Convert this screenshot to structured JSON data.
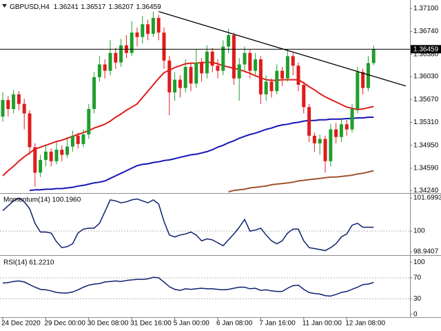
{
  "chart_data": [
    {
      "type": "candlestick",
      "title": "GBPUSD,H4",
      "ohlc": [
        "1.36241",
        "1.36517",
        "1.36207",
        "1.36459"
      ],
      "categories": [
        "24 Dec 2020",
        null,
        null,
        null,
        null,
        null,
        null,
        null,
        "29 Dec 00:00",
        null,
        null,
        null,
        null,
        null,
        null,
        null,
        "30 Dec 08:00",
        null,
        null,
        null,
        null,
        null,
        null,
        null,
        "31 Dec 16:00",
        null,
        null,
        null,
        null,
        null,
        null,
        null,
        "5 Jan 00:00",
        null,
        null,
        null,
        null,
        null,
        null,
        null,
        "6 Jan 08:00",
        null,
        null,
        null,
        null,
        null,
        null,
        null,
        "7 Jan 16:00",
        null,
        null,
        null,
        null,
        null,
        null,
        null,
        "11 Jan 00:00",
        null,
        null,
        null,
        null,
        null,
        null,
        null,
        "12 Jan 08:00",
        null,
        null,
        null,
        null,
        null
      ],
      "open": [
        1.354,
        1.3566,
        1.3552,
        1.3575,
        1.356,
        1.3545,
        1.3492,
        1.3452,
        1.3472,
        1.3485,
        1.347,
        1.3488,
        1.348,
        1.3493,
        1.351,
        1.3497,
        1.3512,
        1.3552,
        1.3602,
        1.3622,
        1.3612,
        1.364,
        1.3625,
        1.3652,
        1.364,
        1.3672,
        1.3665,
        1.3685,
        1.367,
        1.3695,
        1.3672,
        1.3628,
        1.3578,
        1.3598,
        1.3585,
        1.3618,
        1.3592,
        1.3625,
        1.3608,
        1.3642,
        1.362,
        1.3612,
        1.365,
        1.3668,
        1.36,
        1.3622,
        1.364,
        1.3612,
        1.363,
        1.3575,
        1.3595,
        1.358,
        1.3612,
        1.36,
        1.3635,
        1.362,
        1.359,
        1.3555,
        1.351,
        1.3498,
        1.3505,
        1.347,
        1.352,
        1.3508,
        1.3528,
        1.352,
        1.3552,
        1.361,
        1.3585,
        1.36241
      ],
      "high": [
        1.3578,
        1.3572,
        1.3582,
        1.358,
        1.3568,
        1.355,
        1.3498,
        1.348,
        1.3495,
        1.349,
        1.35,
        1.3495,
        1.3505,
        1.3518,
        1.3515,
        1.352,
        1.356,
        1.361,
        1.3635,
        1.363,
        1.366,
        1.3648,
        1.3662,
        1.3668,
        1.369,
        1.368,
        1.3698,
        1.3692,
        1.3705,
        1.37,
        1.368,
        1.3635,
        1.361,
        1.3605,
        1.363,
        1.3625,
        1.3645,
        1.3632,
        1.3652,
        1.3648,
        1.363,
        1.366,
        1.3678,
        1.3672,
        1.3632,
        1.365,
        1.3645,
        1.364,
        1.3635,
        1.3605,
        1.36,
        1.3622,
        1.3618,
        1.3645,
        1.364,
        1.3625,
        1.3595,
        1.356,
        1.3515,
        1.3512,
        1.351,
        1.3528,
        1.353,
        1.3538,
        1.3535,
        1.356,
        1.3618,
        1.3615,
        1.3635,
        1.36517
      ],
      "low": [
        1.3532,
        1.354,
        1.3545,
        1.355,
        1.352,
        1.348,
        1.343,
        1.3445,
        1.3462,
        1.3462,
        1.3465,
        1.347,
        1.3475,
        1.3485,
        1.349,
        1.3492,
        1.3505,
        1.3545,
        1.3595,
        1.36,
        1.3605,
        1.3615,
        1.3618,
        1.3632,
        1.3635,
        1.365,
        1.3655,
        1.366,
        1.3665,
        1.366,
        1.3615,
        1.3542,
        1.3565,
        1.357,
        1.3578,
        1.358,
        1.3585,
        1.3595,
        1.36,
        1.361,
        1.36,
        1.3605,
        1.364,
        1.359,
        1.3565,
        1.3612,
        1.36,
        1.3605,
        1.356,
        1.3565,
        1.357,
        1.3575,
        1.3588,
        1.3595,
        1.3605,
        1.358,
        1.3545,
        1.35,
        1.3485,
        1.348,
        1.3452,
        1.3462,
        1.3498,
        1.35,
        1.351,
        1.3515,
        1.3545,
        1.3575,
        1.358,
        1.36207
      ],
      "close": [
        1.3566,
        1.3552,
        1.3575,
        1.356,
        1.3545,
        1.3492,
        1.3452,
        1.3472,
        1.3485,
        1.347,
        1.3488,
        1.348,
        1.3493,
        1.351,
        1.3497,
        1.3512,
        1.3552,
        1.3602,
        1.3622,
        1.3612,
        1.364,
        1.3625,
        1.3652,
        1.364,
        1.3672,
        1.3665,
        1.3685,
        1.367,
        1.3695,
        1.3672,
        1.3628,
        1.3578,
        1.3598,
        1.3585,
        1.3618,
        1.3592,
        1.3625,
        1.3608,
        1.3642,
        1.362,
        1.3612,
        1.365,
        1.3668,
        1.36,
        1.3622,
        1.364,
        1.3612,
        1.363,
        1.3575,
        1.3595,
        1.358,
        1.3612,
        1.36,
        1.3635,
        1.362,
        1.359,
        1.3555,
        1.351,
        1.3498,
        1.3505,
        1.347,
        1.352,
        1.3508,
        1.3528,
        1.352,
        1.3552,
        1.361,
        1.3585,
        1.36241,
        1.36459
      ],
      "up_color": "#1f9e2c",
      "down_color": "#e01b1b",
      "series": [
        {
          "color": "#e31a1a",
          "values": [
            1.3447,
            1.3455,
            1.3462,
            1.347,
            1.3477,
            1.3483,
            1.3489,
            1.3492,
            1.3495,
            1.3498,
            1.3501,
            1.3503,
            1.3506,
            1.3509,
            1.3512,
            1.3515,
            1.3518,
            1.3522,
            1.3525,
            1.3528,
            1.3533,
            1.3539,
            1.3544,
            1.355,
            1.3555,
            1.356,
            1.357,
            1.358,
            1.359,
            1.36,
            1.3609,
            1.3613,
            1.3617,
            1.362,
            1.3623,
            1.3624,
            1.3624,
            1.3625,
            1.3625,
            1.3625,
            1.3623,
            1.362,
            1.3618,
            1.3616,
            1.3614,
            1.3611,
            1.3608,
            1.3604,
            1.3601,
            1.3598,
            1.3597,
            1.3597,
            1.3598,
            1.3598,
            1.3598,
            1.3598,
            1.3593,
            1.3587,
            1.3582,
            1.3576,
            1.3571,
            1.3567,
            1.3563,
            1.3559,
            1.3555,
            1.3553,
            1.3551,
            1.3552,
            1.3554,
            1.3556
          ]
        },
        {
          "color": "#1414b8",
          "values": [
            null,
            null,
            null,
            null,
            null,
            1.3424,
            1.3425,
            1.3425,
            1.3426,
            1.3426,
            1.3427,
            1.3427,
            1.3428,
            1.3429,
            1.3431,
            1.3432,
            1.3434,
            1.3436,
            1.3437,
            1.3439,
            1.3443,
            1.3447,
            1.3451,
            1.3455,
            1.3459,
            1.3463,
            1.3465,
            1.3466,
            1.3468,
            1.3469,
            1.3471,
            1.3472,
            1.3474,
            1.3476,
            1.3478,
            1.348,
            1.3481,
            1.3483,
            1.3485,
            1.3488,
            1.3492,
            1.3495,
            1.3499,
            1.3502,
            1.3506,
            1.3509,
            1.3512,
            1.3514,
            1.3517,
            1.352,
            1.3522,
            1.3525,
            1.3527,
            1.3528,
            1.353,
            1.3531,
            1.3533,
            1.3534,
            1.3534,
            1.3535,
            1.3535,
            1.3536,
            1.3536,
            1.3536,
            1.3537,
            1.3537,
            1.3538,
            1.3538,
            1.3539,
            1.3539
          ]
        },
        {
          "color": "#a0522d",
          "values": [
            null,
            null,
            null,
            null,
            null,
            null,
            null,
            null,
            null,
            null,
            null,
            null,
            null,
            null,
            null,
            null,
            null,
            null,
            null,
            null,
            null,
            null,
            null,
            null,
            null,
            null,
            null,
            null,
            null,
            null,
            null,
            null,
            null,
            null,
            null,
            null,
            null,
            null,
            null,
            null,
            null,
            null,
            1.3422,
            1.3424,
            1.3425,
            1.3426,
            1.3428,
            1.3429,
            1.343,
            1.3431,
            1.3433,
            1.3434,
            1.3435,
            1.3436,
            1.3437,
            1.3439,
            1.344,
            1.3441,
            1.3442,
            1.3443,
            1.3444,
            1.3445,
            1.3445,
            1.3446,
            1.3447,
            1.3448,
            1.345,
            1.3451,
            1.3453,
            1.3455
          ]
        }
      ],
      "trendline": {
        "x": [
          29,
          75
        ],
        "y": [
          1.3705,
          1.3588
        ],
        "color": "#000000"
      },
      "price_line": {
        "value": 1.36459,
        "label": "1.36459"
      },
      "ylim": [
        1.3421,
        1.3721
      ],
      "yticks": [
        {
          "value": 1.371,
          "label": "1.37100"
        },
        {
          "value": 1.3674,
          "label": "1.36740"
        },
        {
          "value": 1.3638,
          "label": "1.36380"
        },
        {
          "value": 1.3603,
          "label": "1.36030"
        },
        {
          "value": 1.3567,
          "label": "1.35670"
        },
        {
          "value": 1.3531,
          "label": "1.35310"
        },
        {
          "value": 1.3495,
          "label": "1.34950"
        },
        {
          "value": 1.3459,
          "label": "1.34590"
        },
        {
          "value": 1.3424,
          "label": "1.34240"
        }
      ]
    },
    {
      "type": "line",
      "title": "Momentum(14) 100.1960",
      "series": [
        {
          "color": "#0a1f6e",
          "values": [
            101.05,
            101.3,
            101.55,
            101.7,
            101.5,
            101.15,
            100.4,
            99.95,
            99.95,
            99.9,
            99.45,
            99.15,
            99.2,
            99.35,
            99.9,
            100.1,
            100.15,
            100.15,
            100.4,
            101.0,
            101.6,
            101.55,
            101.45,
            101.5,
            101.6,
            101.65,
            101.55,
            101.45,
            101.6,
            101.4,
            100.5,
            99.8,
            99.7,
            99.8,
            99.85,
            99.95,
            99.8,
            99.5,
            99.6,
            99.55,
            99.4,
            99.25,
            99.55,
            99.85,
            100.2,
            100.6,
            100.0,
            100.05,
            100.15,
            99.8,
            99.5,
            99.35,
            99.5,
            99.9,
            100.1,
            100.1,
            99.5,
            99.15,
            99.1,
            99.05,
            99.0,
            99.15,
            99.35,
            99.7,
            99.85,
            100.3,
            100.4,
            100.2,
            100.2,
            100.196
          ]
        }
      ],
      "ylim": [
        98.8,
        101.88
      ],
      "yticks": [
        101.6993,
        100,
        98.9407
      ]
    },
    {
      "type": "line",
      "title": "RSI(14) 61.2210",
      "series": [
        {
          "color": "#0a1f6e",
          "values": [
            60,
            61,
            63,
            64,
            62,
            57,
            52,
            48,
            47,
            45,
            42,
            41,
            41,
            43,
            47,
            52,
            56,
            58,
            59,
            62,
            63,
            64,
            63,
            65,
            66,
            67,
            67,
            68,
            71,
            70,
            62,
            53,
            48,
            46,
            49,
            48,
            49,
            50,
            49,
            49,
            48,
            47,
            48,
            50,
            52,
            52,
            49,
            50,
            46,
            47,
            45,
            44,
            44,
            50,
            55,
            56,
            48,
            42,
            40,
            39,
            36,
            35,
            38,
            42,
            44,
            48,
            52,
            57,
            58,
            61.221
          ]
        }
      ],
      "ylim": [
        -4,
        110.7
      ],
      "yticks": [
        100,
        70,
        30,
        0
      ]
    }
  ]
}
